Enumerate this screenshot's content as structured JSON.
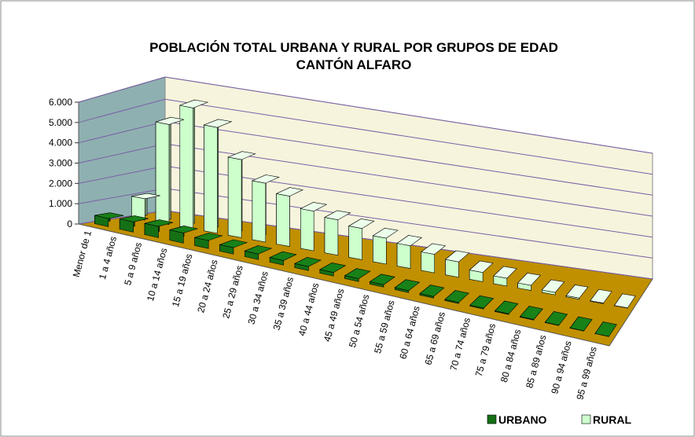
{
  "chart_data": {
    "type": "bar3d",
    "title": "POBLACIÓN TOTAL URBANA Y RURAL  POR GRUPOS DE EDAD",
    "subtitle": "CANTÓN ALFARO",
    "categories": [
      "Menor de 1",
      "1 a 4 años",
      "5 a 9 años",
      "10 a 14 años",
      "15 a 19 años",
      "20 a 24 años",
      "25 a 29 años",
      "30 a 34 años",
      "35 a 39 años",
      "40 a 44 años",
      "45 a 49 años",
      "50 a 54 años",
      "55 a 59 años",
      "60 a 64 años",
      "65 a 69 años",
      "70 a 74 años",
      "75 a 79 años",
      "80 a 84 años",
      "85 a 89 años",
      "90 a 94 años",
      "95 a 99 años"
    ],
    "series": [
      {
        "name": "URBANO",
        "color": "#157015",
        "values": [
          400,
          500,
          550,
          500,
          400,
          320,
          280,
          230,
          200,
          180,
          150,
          120,
          100,
          80,
          60,
          50,
          40,
          30,
          15,
          10,
          5
        ]
      },
      {
        "name": "RURAL",
        "color": "#ccffcc",
        "values": [
          1000,
          4700,
          5700,
          5000,
          3700,
          2800,
          2400,
          1900,
          1700,
          1500,
          1250,
          1100,
          900,
          750,
          450,
          380,
          250,
          120,
          60,
          30,
          10
        ]
      }
    ],
    "ylim": [
      0,
      6000
    ],
    "yticks": [
      0,
      {
        "value": 1000,
        "label": "1.000"
      },
      {
        "value": 2000,
        "label": "2.000"
      },
      {
        "value": 3000,
        "label": "3.000"
      },
      {
        "value": 4000,
        "label": "4.000"
      },
      {
        "value": 5000,
        "label": "5.000"
      },
      {
        "value": 6000,
        "label": "6.000"
      }
    ],
    "grid": true,
    "legend": "bottom-right"
  }
}
